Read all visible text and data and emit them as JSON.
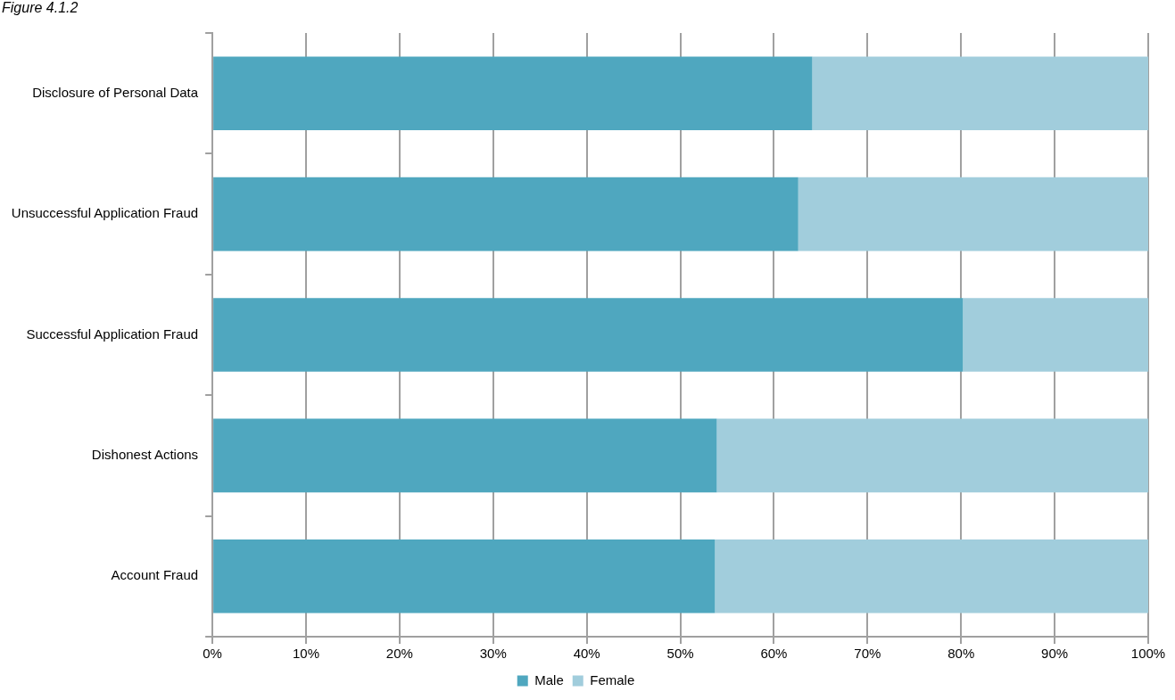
{
  "chart_data": {
    "type": "bar",
    "title": "Figure 4.1.2",
    "orientation": "horizontal",
    "stacked": true,
    "categories": [
      "Disclosure of Personal Data",
      "Unsuccessful Application Fraud",
      "Successful Application Fraud",
      "Dishonest Actions",
      "Account Fraud"
    ],
    "series": [
      {
        "name": "Male",
        "color": "#4fa7bf",
        "values": [
          64.1,
          62.6,
          80.2,
          53.9,
          53.7
        ]
      },
      {
        "name": "Female",
        "color": "#a1cddc",
        "values": [
          35.9,
          37.4,
          19.8,
          46.1,
          46.3
        ]
      }
    ],
    "xlim": [
      0,
      100
    ],
    "xticks": [
      {
        "value": 0,
        "label": "0%"
      },
      {
        "value": 10,
        "label": "10%"
      },
      {
        "value": 20,
        "label": "20%"
      },
      {
        "value": 30,
        "label": "30%"
      },
      {
        "value": 40,
        "label": "40%"
      },
      {
        "value": 50,
        "label": "50%"
      },
      {
        "value": 60,
        "label": "60%"
      },
      {
        "value": 70,
        "label": "70%"
      },
      {
        "value": 80,
        "label": "80%"
      },
      {
        "value": 90,
        "label": "90%"
      },
      {
        "value": 100,
        "label": "100%"
      }
    ],
    "grid": "x",
    "legend": "bottom"
  }
}
